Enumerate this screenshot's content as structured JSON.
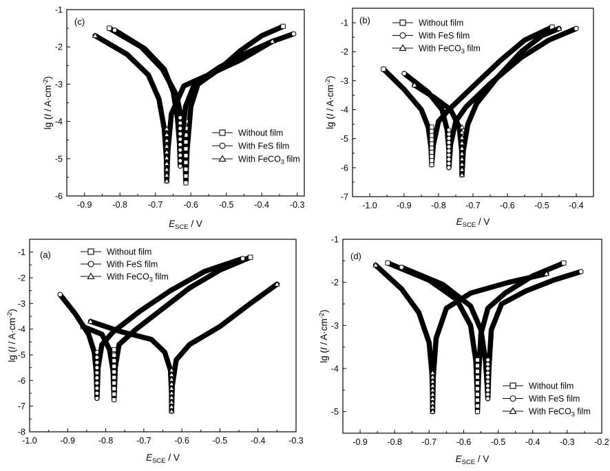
{
  "chart_data": [
    {
      "type": "line",
      "panel_label": "(c)",
      "xlabel": "E_SCE / V",
      "xlabel_parts": {
        "main": "E",
        "sub": "SCE",
        "unit": " / V"
      },
      "ylabel": "lg (I / A·cm-2)",
      "ylabel_parts": {
        "prefix": "lg (",
        "var": "I",
        "mid": " / A·cm",
        "sup": "-2",
        "suffix": ")"
      },
      "xlim": [
        -0.95,
        -0.28
      ],
      "ylim": [
        -6,
        -1
      ],
      "xticks": [
        "-0.9",
        "-0.8",
        "-0.7",
        "-0.6",
        "-0.5",
        "-0.4",
        "-0.3"
      ],
      "xtick_values": [
        -0.9,
        -0.8,
        -0.7,
        -0.6,
        -0.5,
        -0.4,
        -0.3
      ],
      "yticks": [
        "-6",
        "-5",
        "-4",
        "-3",
        "-2",
        "-1"
      ],
      "ytick_values": [
        -6,
        -5,
        -4,
        -3,
        -2,
        -1
      ],
      "legend": {
        "position": "lower-right",
        "items": [
          {
            "marker": "square",
            "text": "Without film",
            "sub": ""
          },
          {
            "marker": "circle",
            "text": "With FeS film",
            "sub": ""
          },
          {
            "marker": "triangle",
            "text": "With FeCO",
            "sub": "3",
            "after": " film"
          }
        ]
      },
      "series": [
        {
          "marker": "square",
          "cathodic": [
            [
              -0.83,
              -1.5
            ],
            [
              -0.74,
              -2.0
            ],
            [
              -0.68,
              -2.6
            ],
            [
              -0.64,
              -3.3
            ],
            [
              -0.625,
              -4.0
            ],
            [
              -0.617,
              -4.8
            ],
            [
              -0.614,
              -5.65
            ]
          ],
          "anodic": [
            [
              -0.614,
              -5.65
            ],
            [
              -0.611,
              -4.8
            ],
            [
              -0.6,
              -3.6
            ],
            [
              -0.58,
              -3.0
            ],
            [
              -0.52,
              -2.6
            ],
            [
              -0.46,
              -2.1
            ],
            [
              -0.4,
              -1.7
            ],
            [
              -0.34,
              -1.45
            ]
          ]
        },
        {
          "marker": "circle",
          "cathodic": [
            [
              -0.815,
              -1.55
            ],
            [
              -0.73,
              -2.05
            ],
            [
              -0.675,
              -2.6
            ],
            [
              -0.65,
              -3.2
            ],
            [
              -0.638,
              -3.9
            ],
            [
              -0.632,
              -4.6
            ],
            [
              -0.63,
              -5.2
            ]
          ],
          "anodic": [
            [
              -0.63,
              -5.2
            ],
            [
              -0.626,
              -4.5
            ],
            [
              -0.615,
              -3.6
            ],
            [
              -0.59,
              -3.0
            ],
            [
              -0.52,
              -2.55
            ],
            [
              -0.44,
              -2.15
            ],
            [
              -0.37,
              -1.85
            ],
            [
              -0.31,
              -1.65
            ]
          ]
        },
        {
          "marker": "triangle",
          "cathodic": [
            [
              -0.87,
              -1.7
            ],
            [
              -0.78,
              -2.2
            ],
            [
              -0.72,
              -2.75
            ],
            [
              -0.69,
              -3.4
            ],
            [
              -0.675,
              -4.2
            ],
            [
              -0.669,
              -5.0
            ],
            [
              -0.668,
              -5.6
            ]
          ],
          "anodic": [
            [
              -0.668,
              -5.6
            ],
            [
              -0.665,
              -4.8
            ],
            [
              -0.655,
              -3.8
            ],
            [
              -0.62,
              -3.05
            ],
            [
              -0.55,
              -2.75
            ],
            [
              -0.46,
              -2.35
            ],
            [
              -0.37,
              -1.85
            ]
          ]
        }
      ]
    },
    {
      "type": "line",
      "panel_label": "(b)",
      "xlabel": "E_SCE / V",
      "xlabel_parts": {
        "main": "E",
        "sub": "SCE",
        "unit": " / V"
      },
      "ylabel": "lg (I / A·cm-2)",
      "ylabel_parts": {
        "prefix": "lg (",
        "var": "I",
        "mid": " / A·cm",
        "sup": "-2",
        "suffix": ")"
      },
      "xlim": [
        -1.05,
        -0.35
      ],
      "ylim": [
        -7,
        -0.5
      ],
      "xticks": [
        "-1.0",
        "-0.9",
        "-0.8",
        "-0.7",
        "-0.6",
        "-0.5",
        "-0.4"
      ],
      "xtick_values": [
        -1.0,
        -0.9,
        -0.8,
        -0.7,
        -0.6,
        -0.5,
        -0.4
      ],
      "yticks": [
        "-7",
        "-6",
        "-5",
        "-4",
        "-3",
        "-2",
        "-1"
      ],
      "ytick_values": [
        -7,
        -6,
        -5,
        -4,
        -3,
        -2,
        -1
      ],
      "legend": {
        "position": "top-center",
        "items": [
          {
            "marker": "square",
            "text": "Without film",
            "sub": ""
          },
          {
            "marker": "circle",
            "text": "With FeS film",
            "sub": ""
          },
          {
            "marker": "triangle",
            "text": "With FeCO",
            "sub": "3",
            "after": " film"
          }
        ]
      },
      "series": [
        {
          "marker": "square",
          "cathodic": [
            [
              -0.96,
              -2.6
            ],
            [
              -0.9,
              -3.3
            ],
            [
              -0.85,
              -4.0
            ],
            [
              -0.83,
              -4.6
            ],
            [
              -0.822,
              -5.3
            ],
            [
              -0.82,
              -5.9
            ]
          ],
          "anodic": [
            [
              -0.82,
              -5.9
            ],
            [
              -0.815,
              -5.2
            ],
            [
              -0.8,
              -4.4
            ],
            [
              -0.77,
              -4.0
            ],
            [
              -0.7,
              -3.2
            ],
            [
              -0.62,
              -2.3
            ],
            [
              -0.55,
              -1.6
            ],
            [
              -0.47,
              -1.15
            ]
          ]
        },
        {
          "marker": "circle",
          "cathodic": [
            [
              -0.9,
              -2.75
            ],
            [
              -0.83,
              -3.4
            ],
            [
              -0.79,
              -4.0
            ],
            [
              -0.775,
              -4.7
            ],
            [
              -0.77,
              -5.4
            ],
            [
              -0.77,
              -6.0
            ]
          ],
          "anodic": [
            [
              -0.77,
              -6.0
            ],
            [
              -0.765,
              -5.2
            ],
            [
              -0.75,
              -4.4
            ],
            [
              -0.72,
              -3.9
            ],
            [
              -0.65,
              -3.1
            ],
            [
              -0.56,
              -2.2
            ],
            [
              -0.48,
              -1.6
            ],
            [
              -0.4,
              -1.2
            ]
          ]
        },
        {
          "marker": "triangle",
          "cathodic": [
            [
              -0.87,
              -3.15
            ],
            [
              -0.81,
              -3.6
            ],
            [
              -0.765,
              -4.0
            ],
            [
              -0.74,
              -4.6
            ],
            [
              -0.733,
              -5.4
            ],
            [
              -0.732,
              -6.25
            ]
          ],
          "anodic": [
            [
              -0.732,
              -6.25
            ],
            [
              -0.728,
              -5.4
            ],
            [
              -0.715,
              -4.5
            ],
            [
              -0.69,
              -3.8
            ],
            [
              -0.63,
              -2.9
            ],
            [
              -0.56,
              -2.0
            ],
            [
              -0.5,
              -1.45
            ],
            [
              -0.45,
              -1.2
            ]
          ]
        }
      ]
    },
    {
      "type": "line",
      "panel_label": "(a)",
      "xlabel": "E_SCE / V",
      "xlabel_parts": {
        "main": "E",
        "sub": "SCE",
        "unit": " / V"
      },
      "ylabel": "lg (I / A·cm-2)",
      "ylabel_parts": {
        "prefix": "lg (",
        "var": "I",
        "mid": " / A·cm",
        "sup": "-2",
        "suffix": ")"
      },
      "xlim": [
        -1.0,
        -0.3
      ],
      "ylim": [
        -8,
        -0.5
      ],
      "xticks": [
        "-1.0",
        "-0.9",
        "-0.8",
        "-0.7",
        "-0.6",
        "-0.5",
        "-0.4",
        "-0.3"
      ],
      "xtick_values": [
        -1.0,
        -0.9,
        -0.8,
        -0.7,
        -0.6,
        -0.5,
        -0.4,
        -0.3
      ],
      "yticks": [
        "-8",
        "-7",
        "-6",
        "-5",
        "-4",
        "-3",
        "-2",
        "-1"
      ],
      "ytick_values": [
        -8,
        -7,
        -6,
        -5,
        -4,
        -3,
        -2,
        -1
      ],
      "legend": {
        "position": "top-left",
        "items": [
          {
            "marker": "square",
            "text": "Without film",
            "sub": ""
          },
          {
            "marker": "circle",
            "text": "With FeS film",
            "sub": ""
          },
          {
            "marker": "triangle",
            "text": "With FeCO",
            "sub": "3",
            "after": " film"
          }
        ]
      },
      "series": [
        {
          "marker": "square",
          "cathodic": [
            [
              -0.86,
              -3.9
            ],
            [
              -0.81,
              -4.2
            ],
            [
              -0.79,
              -4.8
            ],
            [
              -0.781,
              -5.6
            ],
            [
              -0.778,
              -6.75
            ]
          ],
          "anodic": [
            [
              -0.778,
              -6.75
            ],
            [
              -0.775,
              -5.5
            ],
            [
              -0.765,
              -4.6
            ],
            [
              -0.72,
              -4.0
            ],
            [
              -0.65,
              -3.2
            ],
            [
              -0.58,
              -2.4
            ],
            [
              -0.5,
              -1.7
            ],
            [
              -0.42,
              -1.2
            ]
          ]
        },
        {
          "marker": "circle",
          "cathodic": [
            [
              -0.92,
              -2.65
            ],
            [
              -0.88,
              -3.4
            ],
            [
              -0.845,
              -4.2
            ],
            [
              -0.83,
              -4.9
            ],
            [
              -0.825,
              -5.7
            ],
            [
              -0.823,
              -6.7
            ]
          ],
          "anodic": [
            [
              -0.823,
              -6.7
            ],
            [
              -0.82,
              -5.5
            ],
            [
              -0.81,
              -4.6
            ],
            [
              -0.78,
              -4.1
            ],
            [
              -0.71,
              -3.3
            ],
            [
              -0.63,
              -2.5
            ],
            [
              -0.54,
              -1.75
            ],
            [
              -0.44,
              -1.25
            ]
          ]
        },
        {
          "marker": "triangle",
          "cathodic": [
            [
              -0.84,
              -3.7
            ],
            [
              -0.76,
              -4.1
            ],
            [
              -0.68,
              -4.4
            ],
            [
              -0.645,
              -4.9
            ],
            [
              -0.63,
              -5.6
            ],
            [
              -0.627,
              -6.5
            ],
            [
              -0.627,
              -7.2
            ]
          ],
          "anodic": [
            [
              -0.627,
              -7.2
            ],
            [
              -0.625,
              -6.2
            ],
            [
              -0.615,
              -5.2
            ],
            [
              -0.58,
              -4.6
            ],
            [
              -0.5,
              -3.9
            ],
            [
              -0.42,
              -3.0
            ],
            [
              -0.35,
              -2.25
            ]
          ]
        }
      ]
    },
    {
      "type": "line",
      "panel_label": "(d)",
      "xlabel": "E_SCE / V",
      "xlabel_parts": {
        "main": "E",
        "sub": "SCE",
        "unit": " / V"
      },
      "ylabel": "lg (I / A·cm-2)",
      "ylabel_parts": {
        "prefix": "lg (",
        "var": "I",
        "mid": " / A·cm",
        "sup": "-2",
        "suffix": ")"
      },
      "xlim": [
        -0.95,
        -0.2
      ],
      "ylim": [
        -5.5,
        -1
      ],
      "xticks": [
        "-0.9",
        "-0.8",
        "-0.7",
        "-0.6",
        "-0.5",
        "-0.4",
        "-0.3",
        "-0.2"
      ],
      "xtick_values": [
        -0.9,
        -0.8,
        -0.7,
        -0.6,
        -0.5,
        -0.4,
        -0.3,
        -0.2
      ],
      "yticks": [
        "-5",
        "-4",
        "-3",
        "-2",
        "-1"
      ],
      "ytick_values": [
        -5,
        -4,
        -3,
        -2,
        -1
      ],
      "legend": {
        "position": "lower-right",
        "items": [
          {
            "marker": "square",
            "text": "Without film",
            "sub": ""
          },
          {
            "marker": "circle",
            "text": "With FeS film",
            "sub": ""
          },
          {
            "marker": "triangle",
            "text": "With FeCO",
            "sub": "3",
            "after": " film"
          }
        ]
      },
      "series": [
        {
          "marker": "square",
          "cathodic": [
            [
              -0.82,
              -1.55
            ],
            [
              -0.7,
              -1.95
            ],
            [
              -0.62,
              -2.4
            ],
            [
              -0.58,
              -3.0
            ],
            [
              -0.565,
              -3.8
            ],
            [
              -0.561,
              -4.5
            ],
            [
              -0.56,
              -5.0
            ]
          ],
          "anodic": [
            [
              -0.56,
              -5.0
            ],
            [
              -0.557,
              -4.2
            ],
            [
              -0.55,
              -3.2
            ],
            [
              -0.53,
              -2.6
            ],
            [
              -0.48,
              -2.25
            ],
            [
              -0.4,
              -1.85
            ],
            [
              -0.31,
              -1.55
            ]
          ]
        },
        {
          "marker": "circle",
          "cathodic": [
            [
              -0.78,
              -1.65
            ],
            [
              -0.66,
              -2.05
            ],
            [
              -0.58,
              -2.55
            ],
            [
              -0.55,
              -3.1
            ],
            [
              -0.537,
              -3.8
            ],
            [
              -0.532,
              -4.4
            ],
            [
              -0.53,
              -4.7
            ]
          ],
          "anodic": [
            [
              -0.53,
              -4.7
            ],
            [
              -0.527,
              -4.0
            ],
            [
              -0.52,
              -3.1
            ],
            [
              -0.49,
              -2.5
            ],
            [
              -0.42,
              -2.2
            ],
            [
              -0.34,
              -1.95
            ],
            [
              -0.26,
              -1.75
            ]
          ]
        },
        {
          "marker": "triangle",
          "cathodic": [
            [
              -0.855,
              -1.6
            ],
            [
              -0.78,
              -2.15
            ],
            [
              -0.73,
              -2.7
            ],
            [
              -0.7,
              -3.4
            ],
            [
              -0.692,
              -4.1
            ],
            [
              -0.69,
              -4.6
            ],
            [
              -0.69,
              -5.0
            ]
          ],
          "anodic": [
            [
              -0.69,
              -5.0
            ],
            [
              -0.688,
              -4.2
            ],
            [
              -0.68,
              -3.3
            ],
            [
              -0.65,
              -2.6
            ],
            [
              -0.58,
              -2.25
            ],
            [
              -0.47,
              -2.0
            ],
            [
              -0.36,
              -1.8
            ]
          ]
        }
      ]
    }
  ]
}
